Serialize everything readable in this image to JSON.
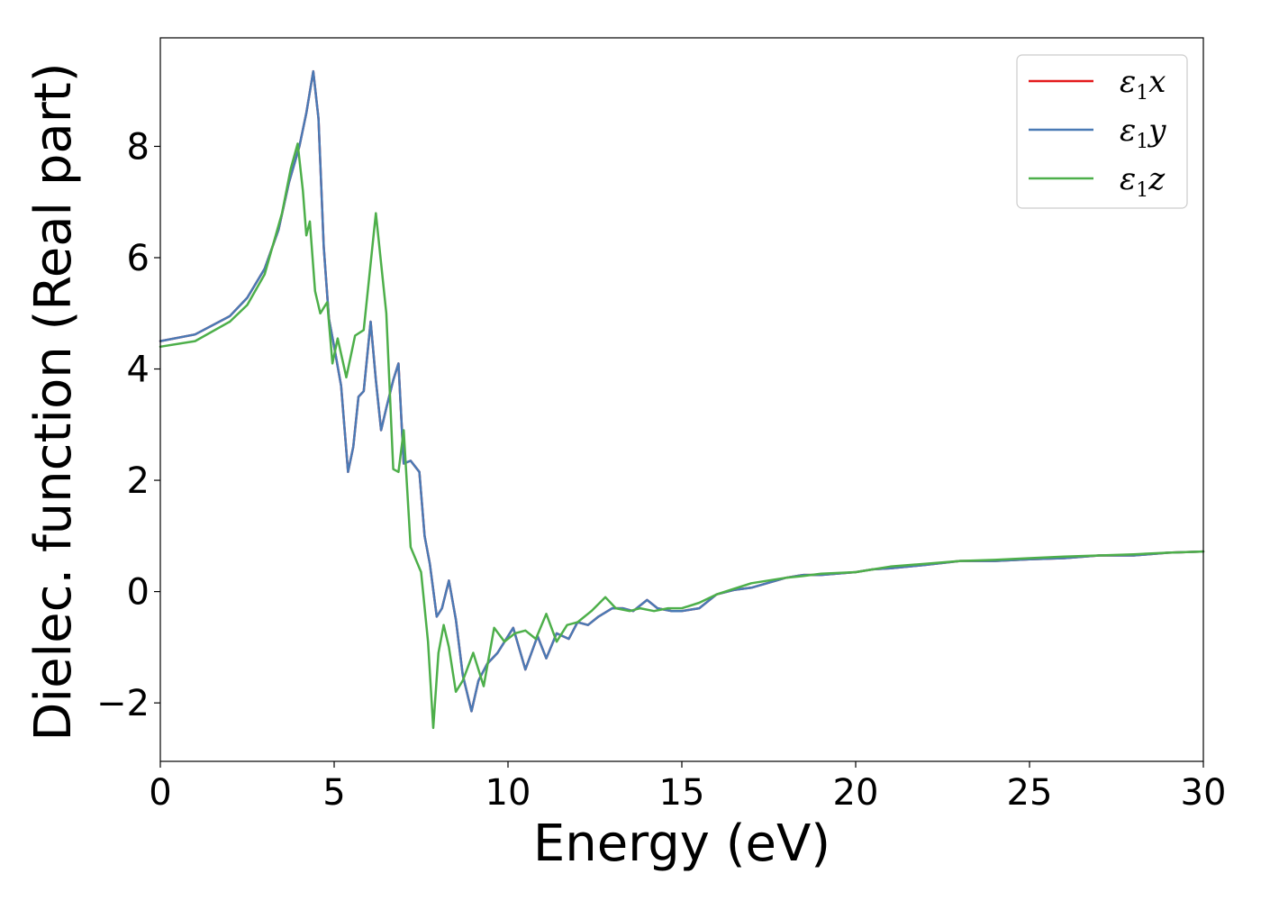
{
  "chart_data": {
    "type": "line",
    "title": "",
    "xlabel": "Energy (eV)",
    "ylabel": "Dielec. function (Real part)",
    "xlim": [
      0,
      30
    ],
    "ylim": [
      -3.05,
      9.95
    ],
    "xticks": [
      0,
      5,
      10,
      15,
      20,
      25,
      30
    ],
    "xtick_labels": [
      "0",
      "5",
      "10",
      "15",
      "20",
      "25",
      "30"
    ],
    "yticks": [
      -2,
      0,
      2,
      4,
      6,
      8
    ],
    "ytick_labels": [
      "−2",
      "0",
      "2",
      "4",
      "6",
      "8"
    ],
    "grid": false,
    "legend_position": "top-right",
    "series": [
      {
        "name": "ε1x",
        "legend_base": "ε",
        "legend_sub": "1",
        "legend_var": "x",
        "color": "#e41a1c",
        "x": [
          0,
          1,
          2,
          2.5,
          3,
          3.4,
          3.7,
          4.0,
          4.2,
          4.4,
          4.55,
          4.7,
          4.85,
          5.0,
          5.2,
          5.4,
          5.55,
          5.7,
          5.85,
          6.05,
          6.2,
          6.35,
          6.5,
          6.7,
          6.85,
          7.0,
          7.2,
          7.45,
          7.6,
          7.75,
          7.95,
          8.1,
          8.3,
          8.5,
          8.7,
          8.95,
          9.15,
          9.4,
          9.7,
          10.15,
          10.5,
          10.85,
          11.1,
          11.4,
          11.75,
          12.0,
          12.3,
          12.6,
          13.0,
          13.3,
          13.6,
          14.0,
          14.3,
          14.7,
          15.0,
          15.5,
          16.0,
          16.5,
          17.0,
          18.0,
          18.5,
          19.0,
          20.0,
          20.5,
          21.0,
          22.0,
          23.0,
          24.0,
          25.0,
          26.0,
          27.0,
          28.0,
          29.0,
          30.0
        ],
        "y": [
          4.5,
          4.62,
          4.95,
          5.28,
          5.8,
          6.5,
          7.35,
          8.0,
          8.6,
          9.35,
          8.5,
          6.2,
          4.9,
          4.4,
          3.7,
          2.15,
          2.6,
          3.5,
          3.6,
          4.85,
          3.8,
          2.9,
          3.3,
          3.8,
          4.1,
          2.3,
          2.35,
          2.15,
          1.0,
          0.5,
          -0.45,
          -0.3,
          0.2,
          -0.5,
          -1.5,
          -2.15,
          -1.6,
          -1.3,
          -1.1,
          -0.65,
          -1.4,
          -0.8,
          -1.2,
          -0.75,
          -0.85,
          -0.55,
          -0.6,
          -0.45,
          -0.3,
          -0.3,
          -0.35,
          -0.15,
          -0.3,
          -0.35,
          -0.35,
          -0.3,
          -0.05,
          0.03,
          0.07,
          0.25,
          0.3,
          0.3,
          0.35,
          0.4,
          0.42,
          0.48,
          0.55,
          0.55,
          0.58,
          0.6,
          0.65,
          0.65,
          0.7,
          0.72
        ]
      },
      {
        "name": "ε1y",
        "legend_base": "ε",
        "legend_sub": "1",
        "legend_var": "y",
        "color": "#4a7ab5",
        "x": [
          0,
          1,
          2,
          2.5,
          3,
          3.4,
          3.7,
          4.0,
          4.2,
          4.4,
          4.55,
          4.7,
          4.85,
          5.0,
          5.2,
          5.4,
          5.55,
          5.7,
          5.85,
          6.05,
          6.2,
          6.35,
          6.5,
          6.7,
          6.85,
          7.0,
          7.2,
          7.45,
          7.6,
          7.75,
          7.95,
          8.1,
          8.3,
          8.5,
          8.7,
          8.95,
          9.15,
          9.4,
          9.7,
          10.15,
          10.5,
          10.85,
          11.1,
          11.4,
          11.75,
          12.0,
          12.3,
          12.6,
          13.0,
          13.3,
          13.6,
          14.0,
          14.3,
          14.7,
          15.0,
          15.5,
          16.0,
          16.5,
          17.0,
          18.0,
          18.5,
          19.0,
          20.0,
          20.5,
          21.0,
          22.0,
          23.0,
          24.0,
          25.0,
          26.0,
          27.0,
          28.0,
          29.0,
          30.0
        ],
        "y": [
          4.5,
          4.62,
          4.95,
          5.28,
          5.8,
          6.5,
          7.35,
          8.0,
          8.6,
          9.35,
          8.5,
          6.2,
          4.9,
          4.4,
          3.7,
          2.15,
          2.6,
          3.5,
          3.6,
          4.85,
          3.8,
          2.9,
          3.3,
          3.8,
          4.1,
          2.3,
          2.35,
          2.15,
          1.0,
          0.5,
          -0.45,
          -0.3,
          0.2,
          -0.5,
          -1.5,
          -2.15,
          -1.6,
          -1.3,
          -1.1,
          -0.65,
          -1.4,
          -0.8,
          -1.2,
          -0.75,
          -0.85,
          -0.55,
          -0.6,
          -0.45,
          -0.3,
          -0.3,
          -0.35,
          -0.15,
          -0.3,
          -0.35,
          -0.35,
          -0.3,
          -0.05,
          0.03,
          0.07,
          0.25,
          0.3,
          0.3,
          0.35,
          0.4,
          0.42,
          0.48,
          0.55,
          0.55,
          0.58,
          0.6,
          0.65,
          0.65,
          0.7,
          0.72
        ]
      },
      {
        "name": "ε1z",
        "legend_base": "ε",
        "legend_sub": "1",
        "legend_var": "z",
        "color": "#4daf4a",
        "x": [
          0,
          1,
          2,
          2.5,
          3,
          3.5,
          3.75,
          3.95,
          4.1,
          4.2,
          4.3,
          4.45,
          4.6,
          4.8,
          4.95,
          5.1,
          5.35,
          5.6,
          5.85,
          6.0,
          6.2,
          6.5,
          6.7,
          6.85,
          7.0,
          7.2,
          7.5,
          7.7,
          7.85,
          8.0,
          8.15,
          8.3,
          8.5,
          8.7,
          9.0,
          9.3,
          9.6,
          9.9,
          10.2,
          10.5,
          10.8,
          11.1,
          11.4,
          11.7,
          12.0,
          12.4,
          12.8,
          13.1,
          13.5,
          13.8,
          14.2,
          14.6,
          15.0,
          15.5,
          16.0,
          16.5,
          17.0,
          18.0,
          18.5,
          19.0,
          20.0,
          20.5,
          21.0,
          22.0,
          23.0,
          24.0,
          25.0,
          26.0,
          27.0,
          28.0,
          29.0,
          30.0
        ],
        "y": [
          4.4,
          4.5,
          4.85,
          5.15,
          5.7,
          6.8,
          7.6,
          8.05,
          7.2,
          6.4,
          6.65,
          5.4,
          5.0,
          5.2,
          4.1,
          4.55,
          3.85,
          4.6,
          4.7,
          5.6,
          6.8,
          5.0,
          2.2,
          2.15,
          2.9,
          0.8,
          0.35,
          -0.9,
          -2.45,
          -1.1,
          -0.6,
          -1.0,
          -1.8,
          -1.6,
          -1.1,
          -1.7,
          -0.65,
          -0.9,
          -0.75,
          -0.7,
          -0.85,
          -0.4,
          -0.9,
          -0.6,
          -0.55,
          -0.35,
          -0.1,
          -0.3,
          -0.35,
          -0.3,
          -0.35,
          -0.3,
          -0.3,
          -0.2,
          -0.05,
          0.05,
          0.15,
          0.25,
          0.28,
          0.32,
          0.35,
          0.4,
          0.45,
          0.5,
          0.55,
          0.57,
          0.6,
          0.63,
          0.65,
          0.67,
          0.7,
          0.72
        ]
      }
    ]
  }
}
